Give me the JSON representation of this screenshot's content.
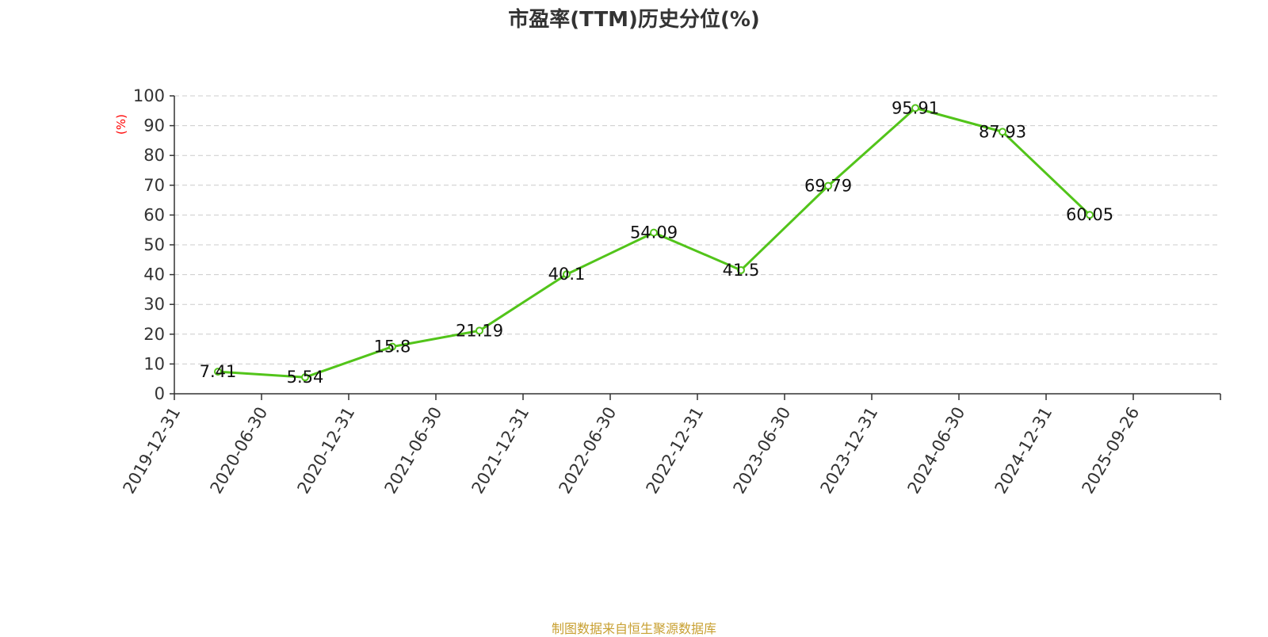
{
  "chart_data": {
    "type": "line",
    "title": "市盈率(TTM)历史分位(%)",
    "ylabel": "(%)",
    "xlabel": "",
    "ylim": [
      0,
      100
    ],
    "yticks": [
      0,
      10,
      20,
      30,
      40,
      50,
      60,
      70,
      80,
      90,
      100
    ],
    "x_tick_labels": [
      "2019-12-31",
      "2020-06-30",
      "2020-12-31",
      "2021-06-30",
      "2021-12-31",
      "2022-06-30",
      "2022-12-31",
      "2023-06-30",
      "2023-12-31",
      "2024-06-30",
      "2024-12-31",
      "2025-09-26"
    ],
    "series": [
      {
        "x": [
          "2019-12-31",
          "2020-06-30",
          "2020-12-31",
          "2021-06-30",
          "2021-12-31",
          "2022-06-30",
          "2022-12-31",
          "2023-06-30",
          "2023-12-31",
          "2024-06-30",
          "2024-12-31"
        ],
        "values": [
          7.41,
          5.54,
          15.8,
          21.19,
          40.1,
          54.09,
          41.5,
          69.79,
          95.91,
          87.93,
          60.05
        ],
        "value_labels": [
          "7.41",
          "5.54",
          "15.8",
          "21.19",
          "40.1",
          "54.09",
          "41.5",
          "69.79",
          "95.91",
          "87.93",
          "60.05"
        ]
      }
    ],
    "grid": true,
    "line_color": "#52c41a",
    "ylabel_color": "#ff0000"
  },
  "source_note": "制图数据来自恒生聚源数据库"
}
